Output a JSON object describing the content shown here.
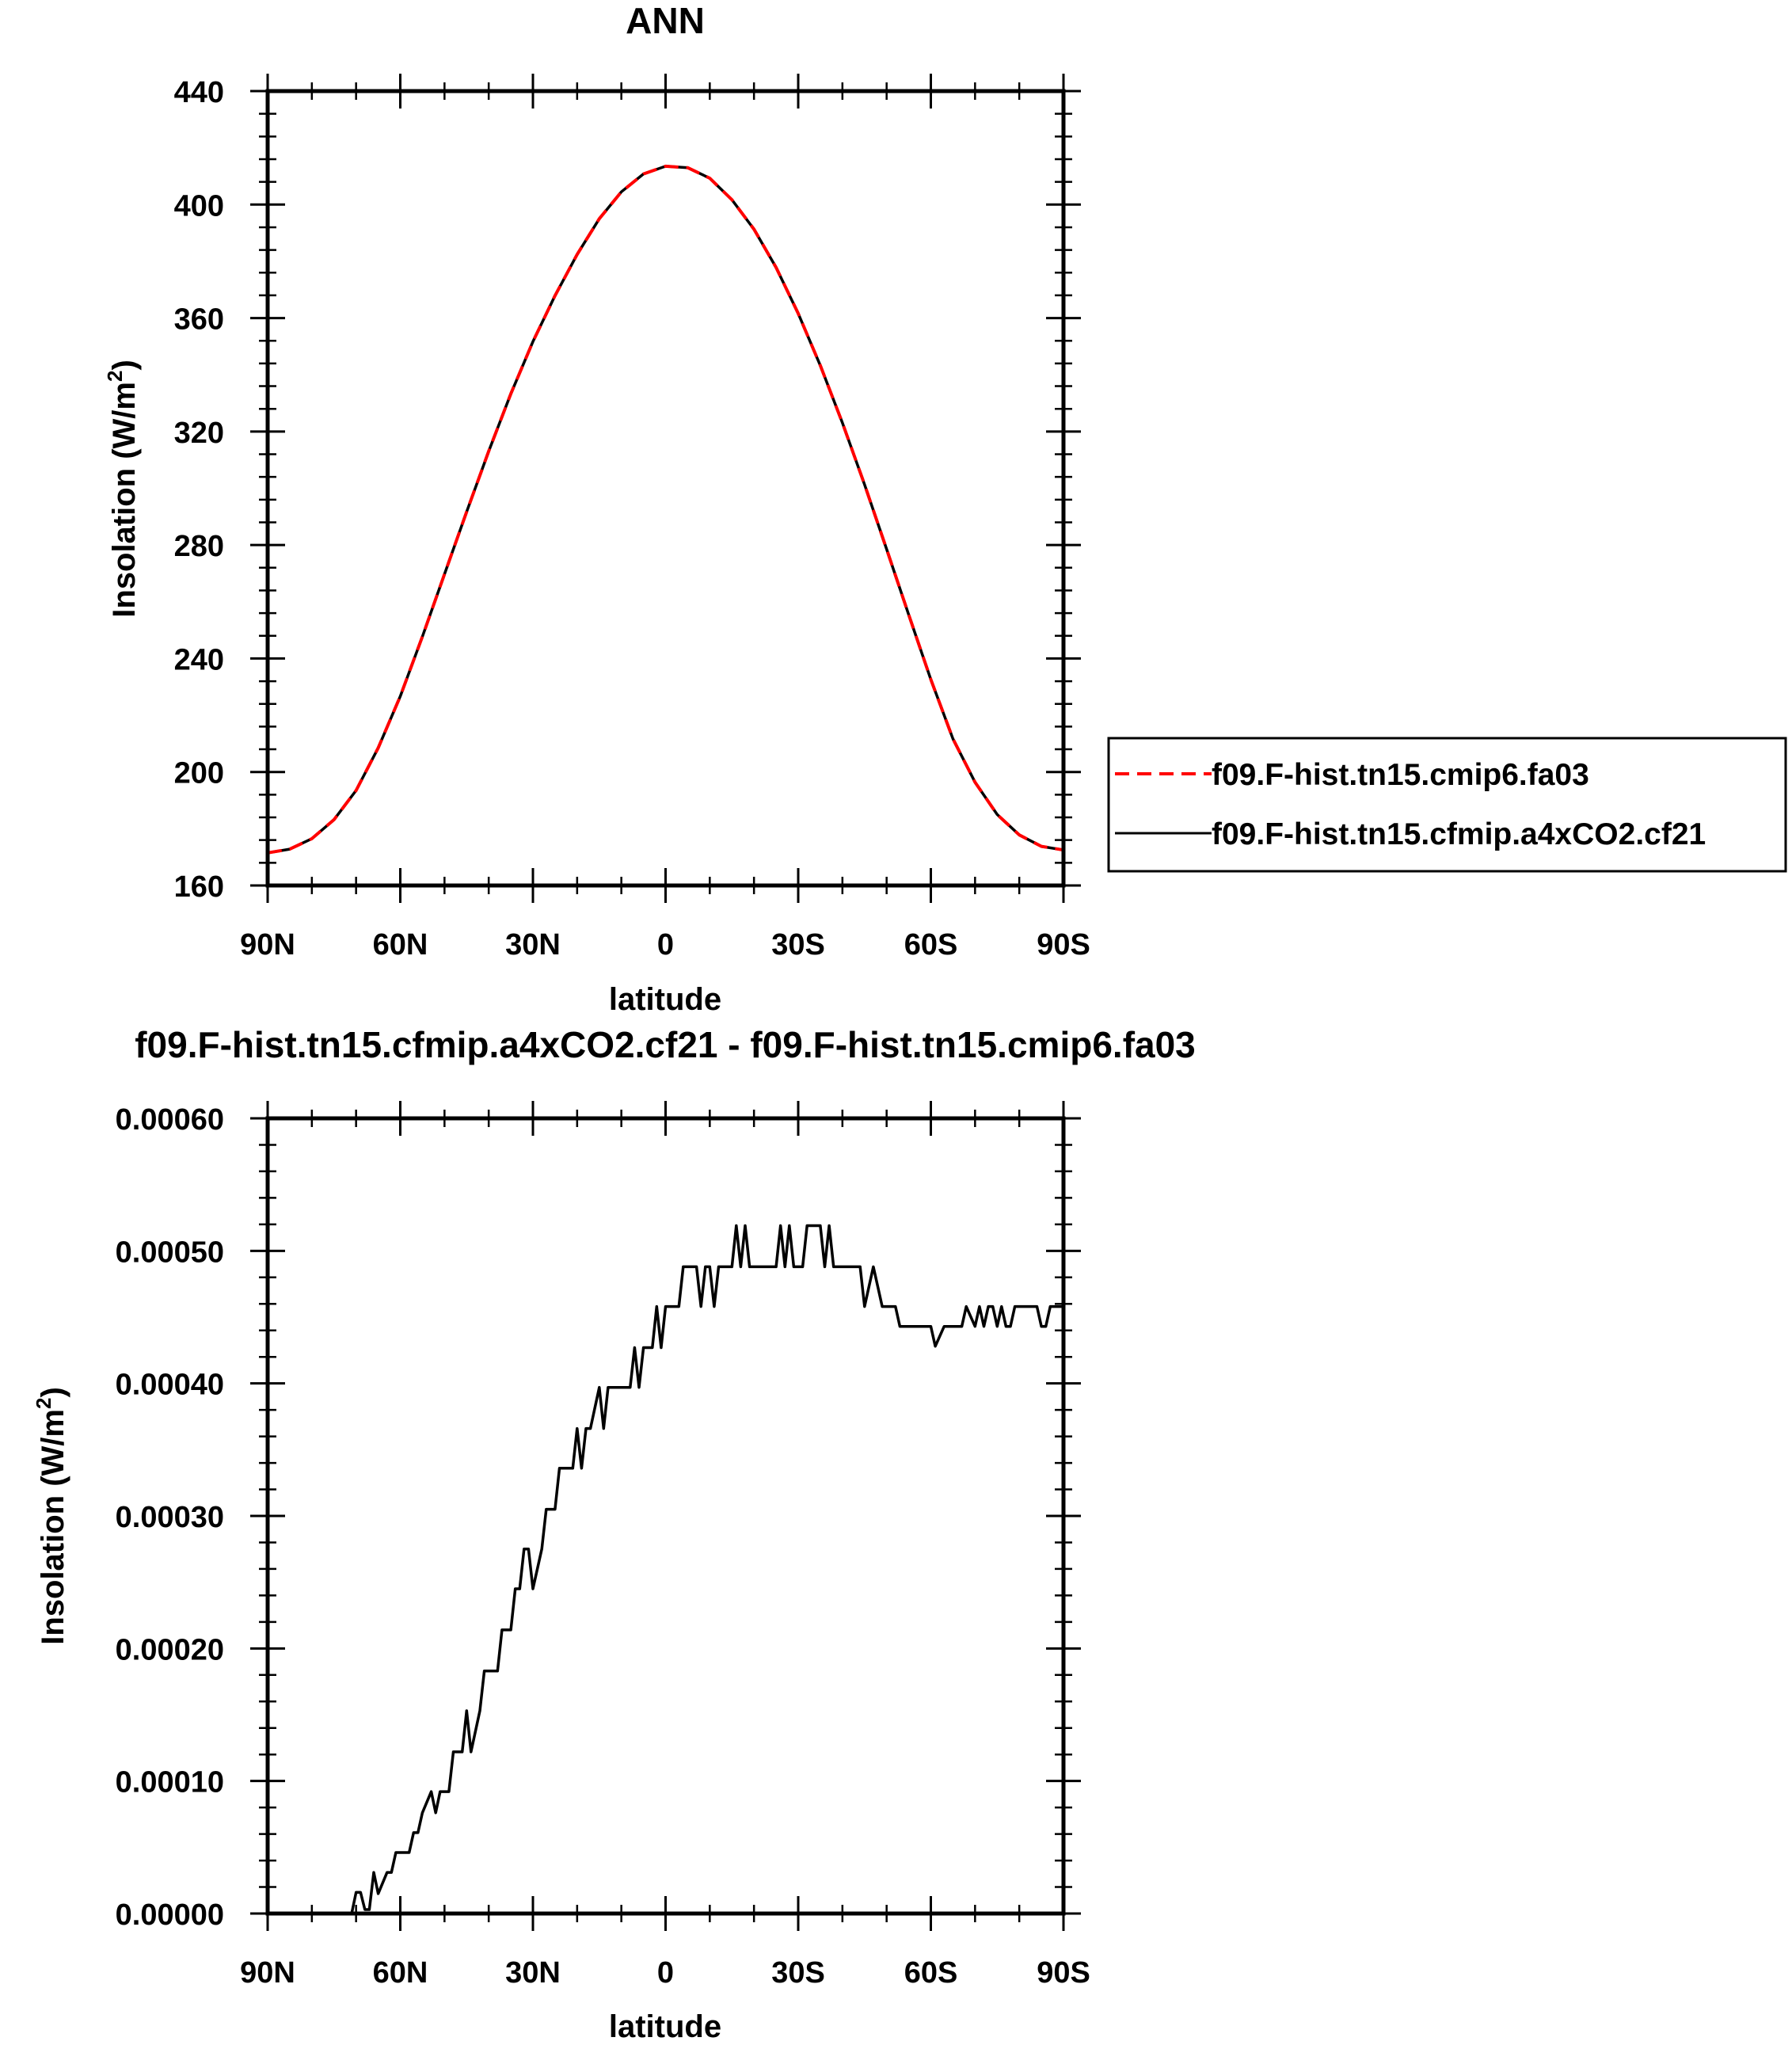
{
  "chart_data": [
    {
      "type": "line",
      "title": "ANN",
      "xlabel": "latitude",
      "ylabel": "Insolation (W/m",
      "ylabel_sup": "2",
      "ylabel_close": ")",
      "xlim": [
        -90,
        90
      ],
      "ylim": [
        160,
        440
      ],
      "xticks": [
        -90,
        -60,
        -30,
        0,
        30,
        60,
        90
      ],
      "xtick_labels": [
        "90N",
        "60N",
        "30N",
        "0",
        "30S",
        "60S",
        "90S"
      ],
      "yticks": [
        160,
        200,
        240,
        280,
        320,
        360,
        400,
        440
      ],
      "ytick_labels": [
        "160",
        "200",
        "240",
        "280",
        "320",
        "360",
        "400",
        "440"
      ],
      "legend_position": "right, outside plot",
      "x": [
        -90,
        -85,
        -80,
        -75,
        -70,
        -65,
        -60,
        -55,
        -50,
        -45,
        -40,
        -35,
        -30,
        -25,
        -20,
        -15,
        -10,
        -5,
        0,
        5,
        10,
        15,
        20,
        25,
        30,
        35,
        40,
        45,
        50,
        55,
        60,
        65,
        70,
        75,
        80,
        85,
        90
      ],
      "series": [
        {
          "name": "f09.F-hist.tn15.cmip6.fa03",
          "color": "#ff0000",
          "dash": "dashed",
          "values": [
            171.5,
            172.8,
            176.5,
            183.2,
            193.5,
            208.5,
            226.7,
            247.7,
            269.7,
            291.7,
            313.1,
            333.3,
            351.7,
            367.9,
            382.4,
            395.0,
            404.5,
            410.8,
            413.5,
            413.0,
            409.3,
            401.7,
            391.3,
            377.8,
            361.6,
            343.3,
            323.1,
            301.3,
            278.5,
            255.4,
            232.6,
            211.7,
            196.4,
            185.0,
            177.8,
            173.8,
            172.5
          ]
        },
        {
          "name": "f09.F-hist.tn15.cfmip.a4xCO2.cf21",
          "color": "#000000",
          "dash": "solid",
          "values": [
            171.5,
            172.8,
            176.5,
            183.2,
            193.5,
            208.5,
            226.7,
            247.7,
            269.7,
            291.7,
            313.1,
            333.3,
            351.7,
            367.9,
            382.4,
            395.0,
            404.5,
            410.8,
            413.5,
            413.0,
            409.3,
            401.7,
            391.3,
            377.8,
            361.6,
            343.3,
            323.1,
            301.3,
            278.5,
            255.4,
            232.6,
            211.7,
            196.4,
            185.0,
            177.8,
            173.8,
            172.5
          ]
        }
      ]
    },
    {
      "type": "line",
      "title": "f09.F-hist.tn15.cfmip.a4xCO2.cf21 - f09.F-hist.tn15.cmip6.fa03",
      "xlabel": "latitude",
      "ylabel": "Insolation (W/m",
      "ylabel_sup": "2",
      "ylabel_close": ")",
      "xlim": [
        -90,
        90
      ],
      "ylim": [
        0.0,
        0.0006
      ],
      "xticks": [
        -90,
        -60,
        -30,
        0,
        30,
        60,
        90
      ],
      "xtick_labels": [
        "90N",
        "60N",
        "30N",
        "0",
        "30S",
        "60S",
        "90S"
      ],
      "yticks": [
        0.0,
        0.0001,
        0.0002,
        0.0003,
        0.0004,
        0.0005,
        0.0006
      ],
      "ytick_labels": [
        "0.00000",
        "0.00010",
        "0.00020",
        "0.00030",
        "0.00040",
        "0.00050",
        "0.00060"
      ],
      "series": [
        {
          "name": "",
          "color": "#000000",
          "x": [
            -90,
            -71,
            -70,
            -69.5,
            -69,
            -68,
            -67,
            -66,
            -65,
            -63,
            -62,
            -61,
            -60,
            -58,
            -57,
            -56,
            -55,
            -53,
            -52,
            -51,
            -50,
            -49,
            -48,
            -46,
            -45,
            -44,
            -42,
            -41,
            -40,
            -38,
            -37,
            -35,
            -34,
            -33,
            -32,
            -31,
            -30,
            -28,
            -27,
            -25,
            -24,
            -23,
            -21,
            -20,
            -19,
            -18,
            -17,
            -15,
            -14,
            -13,
            -12,
            -11,
            -10,
            -8,
            -7,
            -6,
            -5,
            -4,
            -3,
            -2,
            -1,
            0,
            1,
            3,
            4,
            5,
            7,
            8,
            9,
            10,
            11,
            12,
            13,
            14,
            15,
            16,
            17,
            18,
            19,
            20,
            21,
            22,
            25,
            26,
            27,
            28,
            29,
            30,
            31,
            32,
            35,
            36,
            37,
            38,
            39,
            40,
            41,
            42,
            43,
            44,
            45,
            47,
            49,
            50,
            51,
            52,
            53,
            55,
            58,
            59,
            60,
            61,
            63,
            66,
            67,
            68,
            70,
            71,
            72,
            73,
            74,
            75,
            76,
            77,
            78,
            79,
            80,
            81,
            82,
            83,
            84,
            85,
            86,
            87,
            88,
            89,
            90
          ],
          "values": [
            0.0,
            0.0,
            1.6e-05,
            1.6e-05,
            1.6e-05,
            3e-06,
            3e-06,
            3.1e-05,
            1.5e-05,
            3.1e-05,
            3.1e-05,
            4.6e-05,
            4.6e-05,
            4.6e-05,
            6.1e-05,
            6.1e-05,
            7.6e-05,
            9.2e-05,
            7.6e-05,
            9.2e-05,
            9.2e-05,
            9.2e-05,
            0.000122,
            0.000122,
            0.000153,
            0.000122,
            0.000153,
            0.000183,
            0.000183,
            0.000183,
            0.000214,
            0.000214,
            0.000245,
            0.000245,
            0.000275,
            0.000275,
            0.000245,
            0.000275,
            0.000305,
            0.000305,
            0.000336,
            0.000336,
            0.000336,
            0.000366,
            0.000336,
            0.000366,
            0.000366,
            0.000397,
            0.000366,
            0.000397,
            0.000397,
            0.000397,
            0.000397,
            0.000397,
            0.000427,
            0.000397,
            0.000427,
            0.000427,
            0.000427,
            0.000458,
            0.000427,
            0.000458,
            0.000458,
            0.000458,
            0.000488,
            0.000488,
            0.000488,
            0.000458,
            0.000488,
            0.000488,
            0.000458,
            0.000488,
            0.000488,
            0.000488,
            0.000488,
            0.000519,
            0.000488,
            0.000519,
            0.000488,
            0.000488,
            0.000488,
            0.000488,
            0.000488,
            0.000519,
            0.000488,
            0.000519,
            0.000488,
            0.000488,
            0.000488,
            0.000519,
            0.000519,
            0.000488,
            0.000519,
            0.000488,
            0.000488,
            0.000488,
            0.000488,
            0.000488,
            0.000488,
            0.000488,
            0.000458,
            0.000488,
            0.000458,
            0.000458,
            0.000458,
            0.000458,
            0.000443,
            0.000443,
            0.000443,
            0.000443,
            0.000443,
            0.000428,
            0.000443,
            0.000443,
            0.000443,
            0.000458,
            0.000443,
            0.000458,
            0.000443,
            0.000458,
            0.000458,
            0.000443,
            0.000458,
            0.000443,
            0.000443,
            0.000458,
            0.000458,
            0.000458,
            0.000458,
            0.000458,
            0.000458,
            0.000443,
            0.000443,
            0.000458,
            0.000458,
            0.000458,
            0.000458
          ]
        }
      ]
    }
  ]
}
